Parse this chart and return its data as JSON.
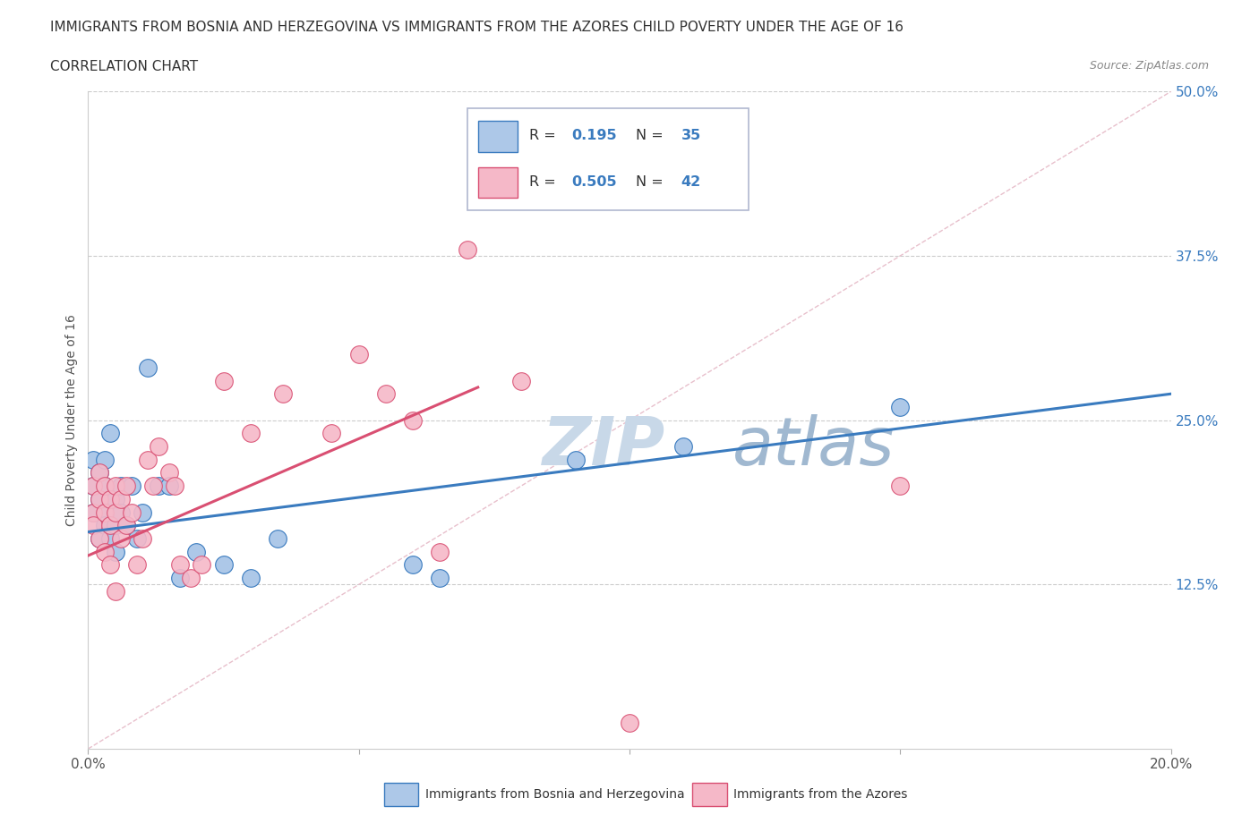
{
  "title": "IMMIGRANTS FROM BOSNIA AND HERZEGOVINA VS IMMIGRANTS FROM THE AZORES CHILD POVERTY UNDER THE AGE OF 16",
  "subtitle": "CORRELATION CHART",
  "source": "Source: ZipAtlas.com",
  "ylabel": "Child Poverty Under the Age of 16",
  "xlim": [
    0.0,
    0.2
  ],
  "ylim": [
    0.0,
    0.5
  ],
  "xticks": [
    0.0,
    0.05,
    0.1,
    0.15,
    0.2
  ],
  "yticks": [
    0.0,
    0.125,
    0.25,
    0.375,
    0.5
  ],
  "xticklabels": [
    "0.0%",
    "",
    "",
    "",
    "20.0%"
  ],
  "yticklabels_right": [
    "",
    "12.5%",
    "25.0%",
    "37.5%",
    "50.0%"
  ],
  "blue_color": "#adc8e8",
  "pink_color": "#f5b8c8",
  "blue_line_color": "#3a7bbf",
  "pink_line_color": "#d94f72",
  "R_blue": 0.195,
  "N_blue": 35,
  "R_pink": 0.505,
  "N_pink": 42,
  "legend_label_blue": "Immigrants from Bosnia and Herzegovina",
  "legend_label_pink": "Immigrants from the Azores",
  "watermark_zip": "ZIP",
  "watermark_atlas": "atlas",
  "blue_scatter_x": [
    0.001,
    0.001,
    0.001,
    0.002,
    0.002,
    0.002,
    0.003,
    0.003,
    0.003,
    0.003,
    0.004,
    0.004,
    0.004,
    0.005,
    0.005,
    0.005,
    0.006,
    0.006,
    0.007,
    0.008,
    0.009,
    0.01,
    0.011,
    0.013,
    0.015,
    0.017,
    0.02,
    0.025,
    0.03,
    0.035,
    0.06,
    0.065,
    0.09,
    0.11,
    0.15
  ],
  "blue_scatter_y": [
    0.18,
    0.2,
    0.22,
    0.19,
    0.21,
    0.16,
    0.18,
    0.22,
    0.2,
    0.17,
    0.19,
    0.16,
    0.24,
    0.17,
    0.19,
    0.15,
    0.18,
    0.2,
    0.17,
    0.2,
    0.16,
    0.18,
    0.29,
    0.2,
    0.2,
    0.13,
    0.15,
    0.14,
    0.13,
    0.16,
    0.14,
    0.13,
    0.22,
    0.23,
    0.26
  ],
  "pink_scatter_x": [
    0.001,
    0.001,
    0.001,
    0.002,
    0.002,
    0.002,
    0.003,
    0.003,
    0.003,
    0.004,
    0.004,
    0.004,
    0.005,
    0.005,
    0.005,
    0.006,
    0.006,
    0.007,
    0.007,
    0.008,
    0.009,
    0.01,
    0.011,
    0.012,
    0.013,
    0.015,
    0.016,
    0.017,
    0.019,
    0.021,
    0.025,
    0.03,
    0.036,
    0.045,
    0.05,
    0.055,
    0.06,
    0.065,
    0.07,
    0.08,
    0.1,
    0.15
  ],
  "pink_scatter_y": [
    0.2,
    0.18,
    0.17,
    0.21,
    0.19,
    0.16,
    0.2,
    0.18,
    0.15,
    0.19,
    0.17,
    0.14,
    0.2,
    0.18,
    0.12,
    0.19,
    0.16,
    0.2,
    0.17,
    0.18,
    0.14,
    0.16,
    0.22,
    0.2,
    0.23,
    0.21,
    0.2,
    0.14,
    0.13,
    0.14,
    0.28,
    0.24,
    0.27,
    0.24,
    0.3,
    0.27,
    0.25,
    0.15,
    0.38,
    0.28,
    0.02,
    0.2
  ],
  "blue_trend_x": [
    0.0,
    0.2
  ],
  "blue_trend_y": [
    0.165,
    0.27
  ],
  "pink_trend_x": [
    0.0,
    0.072
  ],
  "pink_trend_y": [
    0.147,
    0.275
  ]
}
